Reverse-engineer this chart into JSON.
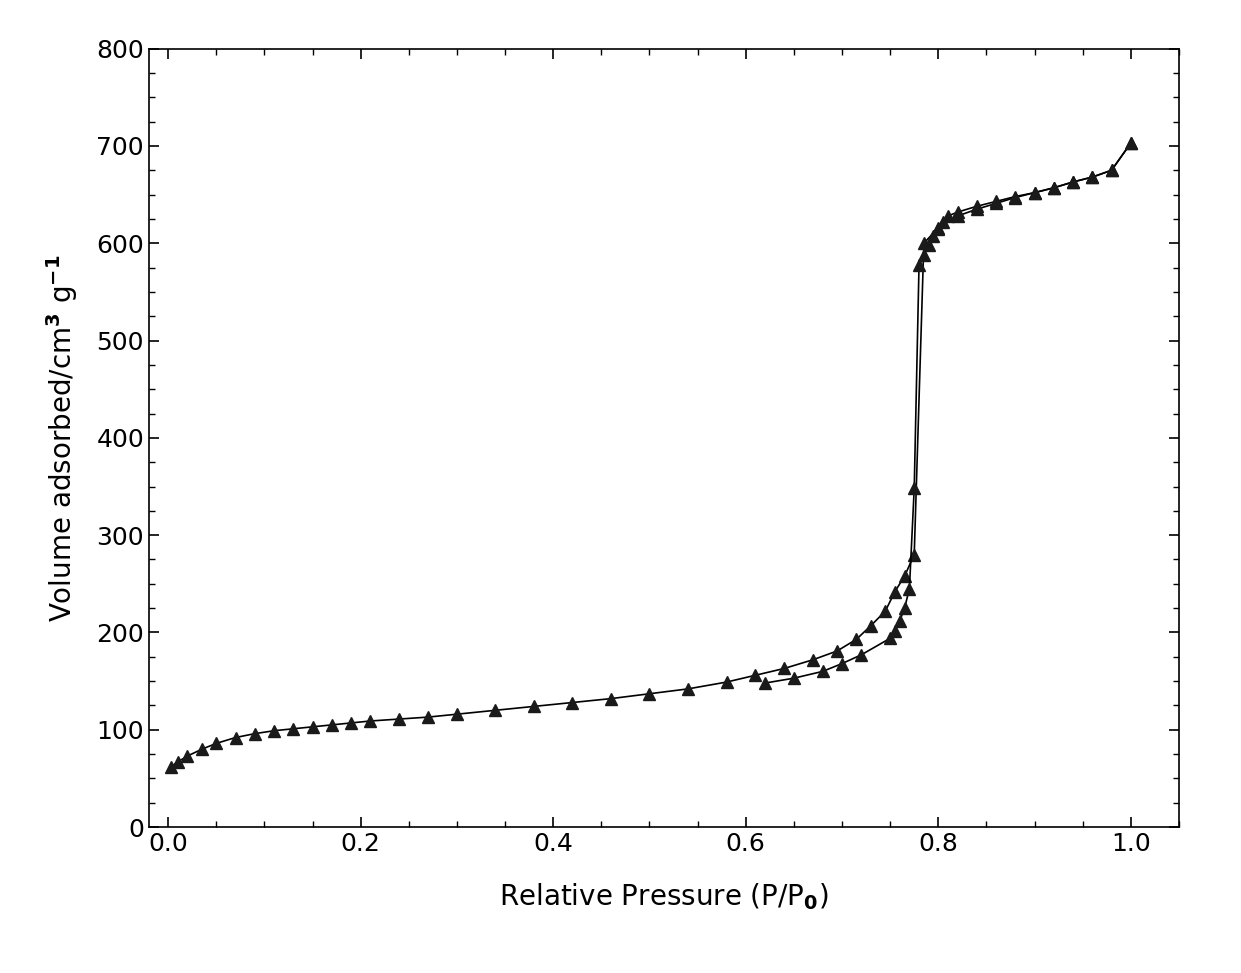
{
  "title": "",
  "xlabel": "Relative Pressure (P/P$_0$)",
  "ylabel": "Volume adsorbed/cm$^3$ g$^{-1}$",
  "xlim": [
    -0.02,
    1.05
  ],
  "ylim": [
    0,
    800
  ],
  "xticks": [
    0.0,
    0.2,
    0.4,
    0.6,
    0.8,
    1.0
  ],
  "yticks": [
    0,
    100,
    200,
    300,
    400,
    500,
    600,
    700,
    800
  ],
  "line_color": "#000000",
  "marker": "^",
  "marker_color": "#1a1a1a",
  "marker_size": 9,
  "adsorption_x": [
    0.003,
    0.01,
    0.02,
    0.035,
    0.05,
    0.07,
    0.09,
    0.11,
    0.13,
    0.15,
    0.17,
    0.19,
    0.21,
    0.24,
    0.27,
    0.3,
    0.34,
    0.38,
    0.42,
    0.46,
    0.5,
    0.54,
    0.58,
    0.61,
    0.64,
    0.67,
    0.695,
    0.715,
    0.73,
    0.745,
    0.755,
    0.765,
    0.775,
    0.785,
    0.8,
    0.82,
    0.84,
    0.86,
    0.88,
    0.9,
    0.92,
    0.94,
    0.96,
    0.98,
    1.0
  ],
  "adsorption_y": [
    62,
    67,
    73,
    80,
    86,
    92,
    96,
    99,
    101,
    103,
    105,
    107,
    109,
    111,
    113,
    116,
    120,
    124,
    128,
    132,
    137,
    142,
    149,
    156,
    163,
    172,
    181,
    193,
    207,
    222,
    242,
    258,
    280,
    600,
    616,
    628,
    635,
    641,
    647,
    652,
    657,
    663,
    668,
    675,
    703
  ],
  "desorption_x": [
    1.0,
    0.98,
    0.96,
    0.94,
    0.92,
    0.9,
    0.88,
    0.86,
    0.84,
    0.82,
    0.81,
    0.805,
    0.8,
    0.795,
    0.79,
    0.785,
    0.78,
    0.775,
    0.77,
    0.765,
    0.76,
    0.755,
    0.75,
    0.72,
    0.7,
    0.68,
    0.65,
    0.62
  ],
  "desorption_y": [
    703,
    675,
    668,
    663,
    657,
    652,
    648,
    643,
    638,
    632,
    628,
    622,
    615,
    607,
    598,
    588,
    578,
    348,
    245,
    225,
    212,
    202,
    194,
    177,
    168,
    160,
    153,
    148
  ],
  "background_color": "#ffffff",
  "axis_color": "#000000",
  "label_fontsize": 20,
  "tick_fontsize": 18,
  "xlabel_fontsize": 20
}
